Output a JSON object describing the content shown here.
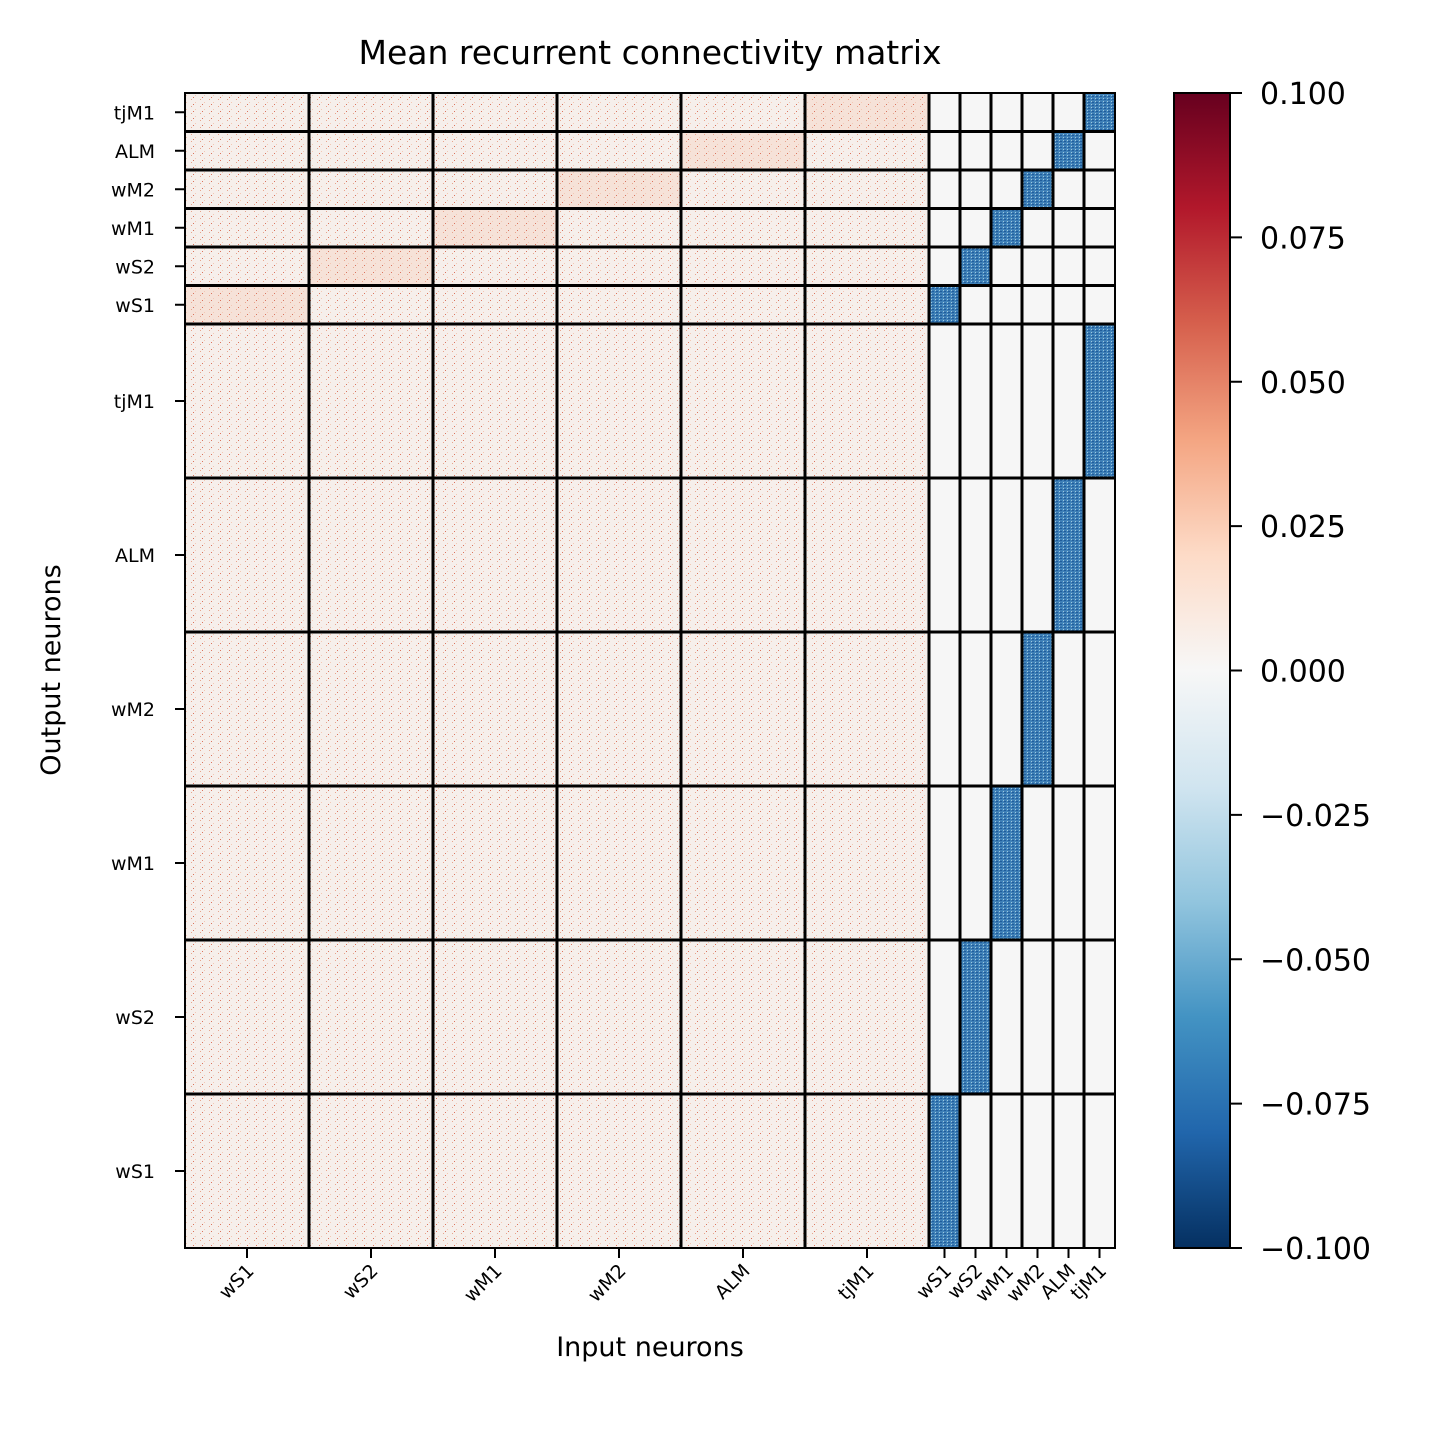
{
  "chart_data": {
    "type": "heatmap",
    "title": "Mean recurrent connectivity matrix",
    "xlabel": "Input neurons",
    "ylabel": "Output neurons",
    "colormap": "RdBu_r",
    "clim": [
      -0.1,
      0.1
    ],
    "colorbar_ticks": [
      "0.100",
      "0.075",
      "0.050",
      "0.025",
      "0.000",
      "−0.025",
      "−0.050",
      "−0.075",
      "−0.100"
    ],
    "colorbar_tick_values": [
      0.1,
      0.075,
      0.05,
      0.025,
      0.0,
      -0.025,
      -0.05,
      -0.075,
      -0.1
    ],
    "x_tick_labels": [
      "wS1",
      "wS2",
      "wM1",
      "wM2",
      "ALM",
      "tjM1",
      "wS1",
      "wS2",
      "wM1",
      "wM2",
      "ALM",
      "tjM1"
    ],
    "y_tick_labels": [
      "tjM1",
      "ALM",
      "wM2",
      "wM1",
      "wS2",
      "wS1",
      "tjM1",
      "ALM",
      "wM2",
      "wM1",
      "wS2",
      "wS1"
    ],
    "x_block_relative_sizes": [
      4,
      4,
      4,
      4,
      4,
      4,
      1,
      1,
      1,
      1,
      1,
      1
    ],
    "y_block_relative_sizes": [
      1,
      1,
      1,
      1,
      1,
      1,
      4,
      4,
      4,
      4,
      4,
      4
    ],
    "block_mean_pattern": {
      "excitatory_inputs_to_all_outputs": "small positive (~0.005)",
      "excitatory_within_area_top_rows": "positive (~0.02)",
      "inhibitory_inputs_within_area": "negative (~ -0.06)",
      "inhibitory_inputs_across_areas": "~0.0"
    },
    "grid": false
  }
}
